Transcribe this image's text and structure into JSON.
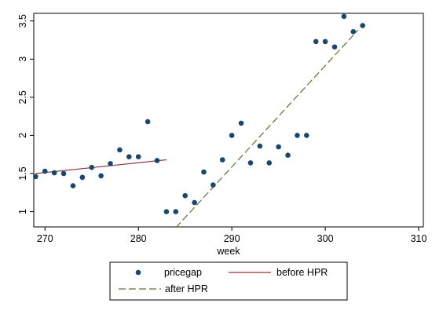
{
  "chart_data": {
    "type": "scatter",
    "title": "",
    "xlabel": "week",
    "ylabel": "",
    "xlim": [
      268.8,
      310.5
    ],
    "ylim": [
      0.8,
      3.6
    ],
    "x_ticks": [
      270,
      280,
      290,
      300,
      310
    ],
    "x_tick_labels": [
      "270",
      "280",
      "290",
      "300",
      "310"
    ],
    "y_ticks": [
      1,
      1.5,
      2,
      2.5,
      3,
      3.5
    ],
    "y_tick_labels": [
      "1",
      "1.5",
      "2",
      "2.5",
      "3",
      "3.5"
    ],
    "grid": false,
    "legend_position": "bottom",
    "series": [
      {
        "name": "pricegap",
        "kind": "scatter",
        "color": "#1a476f",
        "x": [
          269,
          270,
          271,
          272,
          273,
          274,
          275,
          276,
          277,
          278,
          279,
          280,
          281,
          282,
          283,
          284,
          285,
          286,
          287,
          288,
          289,
          290,
          291,
          292,
          293,
          294,
          295,
          296,
          297,
          298,
          299,
          300,
          301,
          302,
          303,
          304
        ],
        "y": [
          1.46,
          1.53,
          1.51,
          1.5,
          1.34,
          1.45,
          1.58,
          1.47,
          1.63,
          1.81,
          1.72,
          1.72,
          2.18,
          1.67,
          1.0,
          1.0,
          1.21,
          1.12,
          1.52,
          1.35,
          1.68,
          2.0,
          2.16,
          1.64,
          1.86,
          1.64,
          1.85,
          1.74,
          2.0,
          2.0,
          3.23,
          3.23,
          3.16,
          3.56,
          3.36,
          3.44
        ]
      },
      {
        "name": "before HPR",
        "kind": "line",
        "style": "solid",
        "color": "#90353b",
        "x": [
          269,
          283
        ],
        "y": [
          1.5,
          1.68
        ]
      },
      {
        "name": "after HPR",
        "kind": "line",
        "style": "dashed",
        "color": "#55752f",
        "x": [
          284,
          303.5
        ],
        "y": [
          0.79,
          3.38
        ]
      }
    ]
  }
}
